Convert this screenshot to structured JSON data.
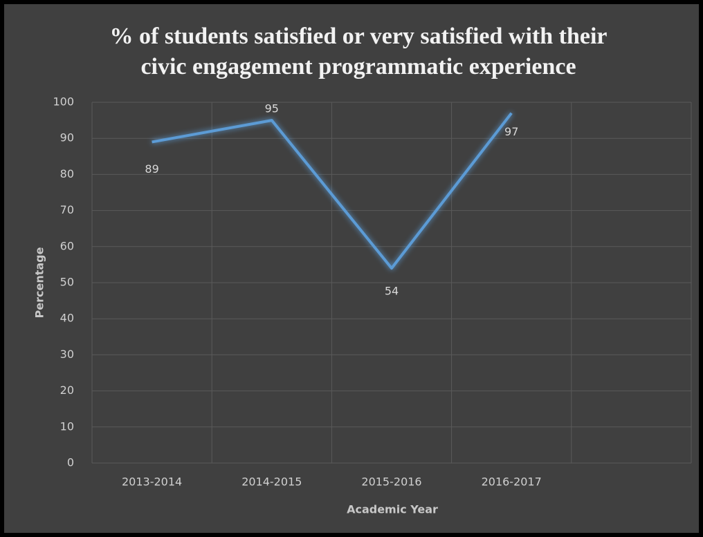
{
  "chart_data": {
    "type": "line",
    "title": "% of students satisfied or very satisfied with their civic engagement programmatic experience",
    "x_label": "Academic Year",
    "y_label": "Percentage",
    "categories": [
      "2013-2014",
      "2014-2015",
      "2015-2016",
      "2016-2017",
      null
    ],
    "series": [
      {
        "name": "Percentage",
        "color": "#5b9bd5",
        "values": [
          89,
          95,
          54,
          97,
          null
        ]
      }
    ],
    "ylim": [
      0,
      100
    ],
    "yticks": [
      0,
      10,
      20,
      30,
      40,
      50,
      60,
      70,
      80,
      90,
      100
    ],
    "grid": true
  }
}
